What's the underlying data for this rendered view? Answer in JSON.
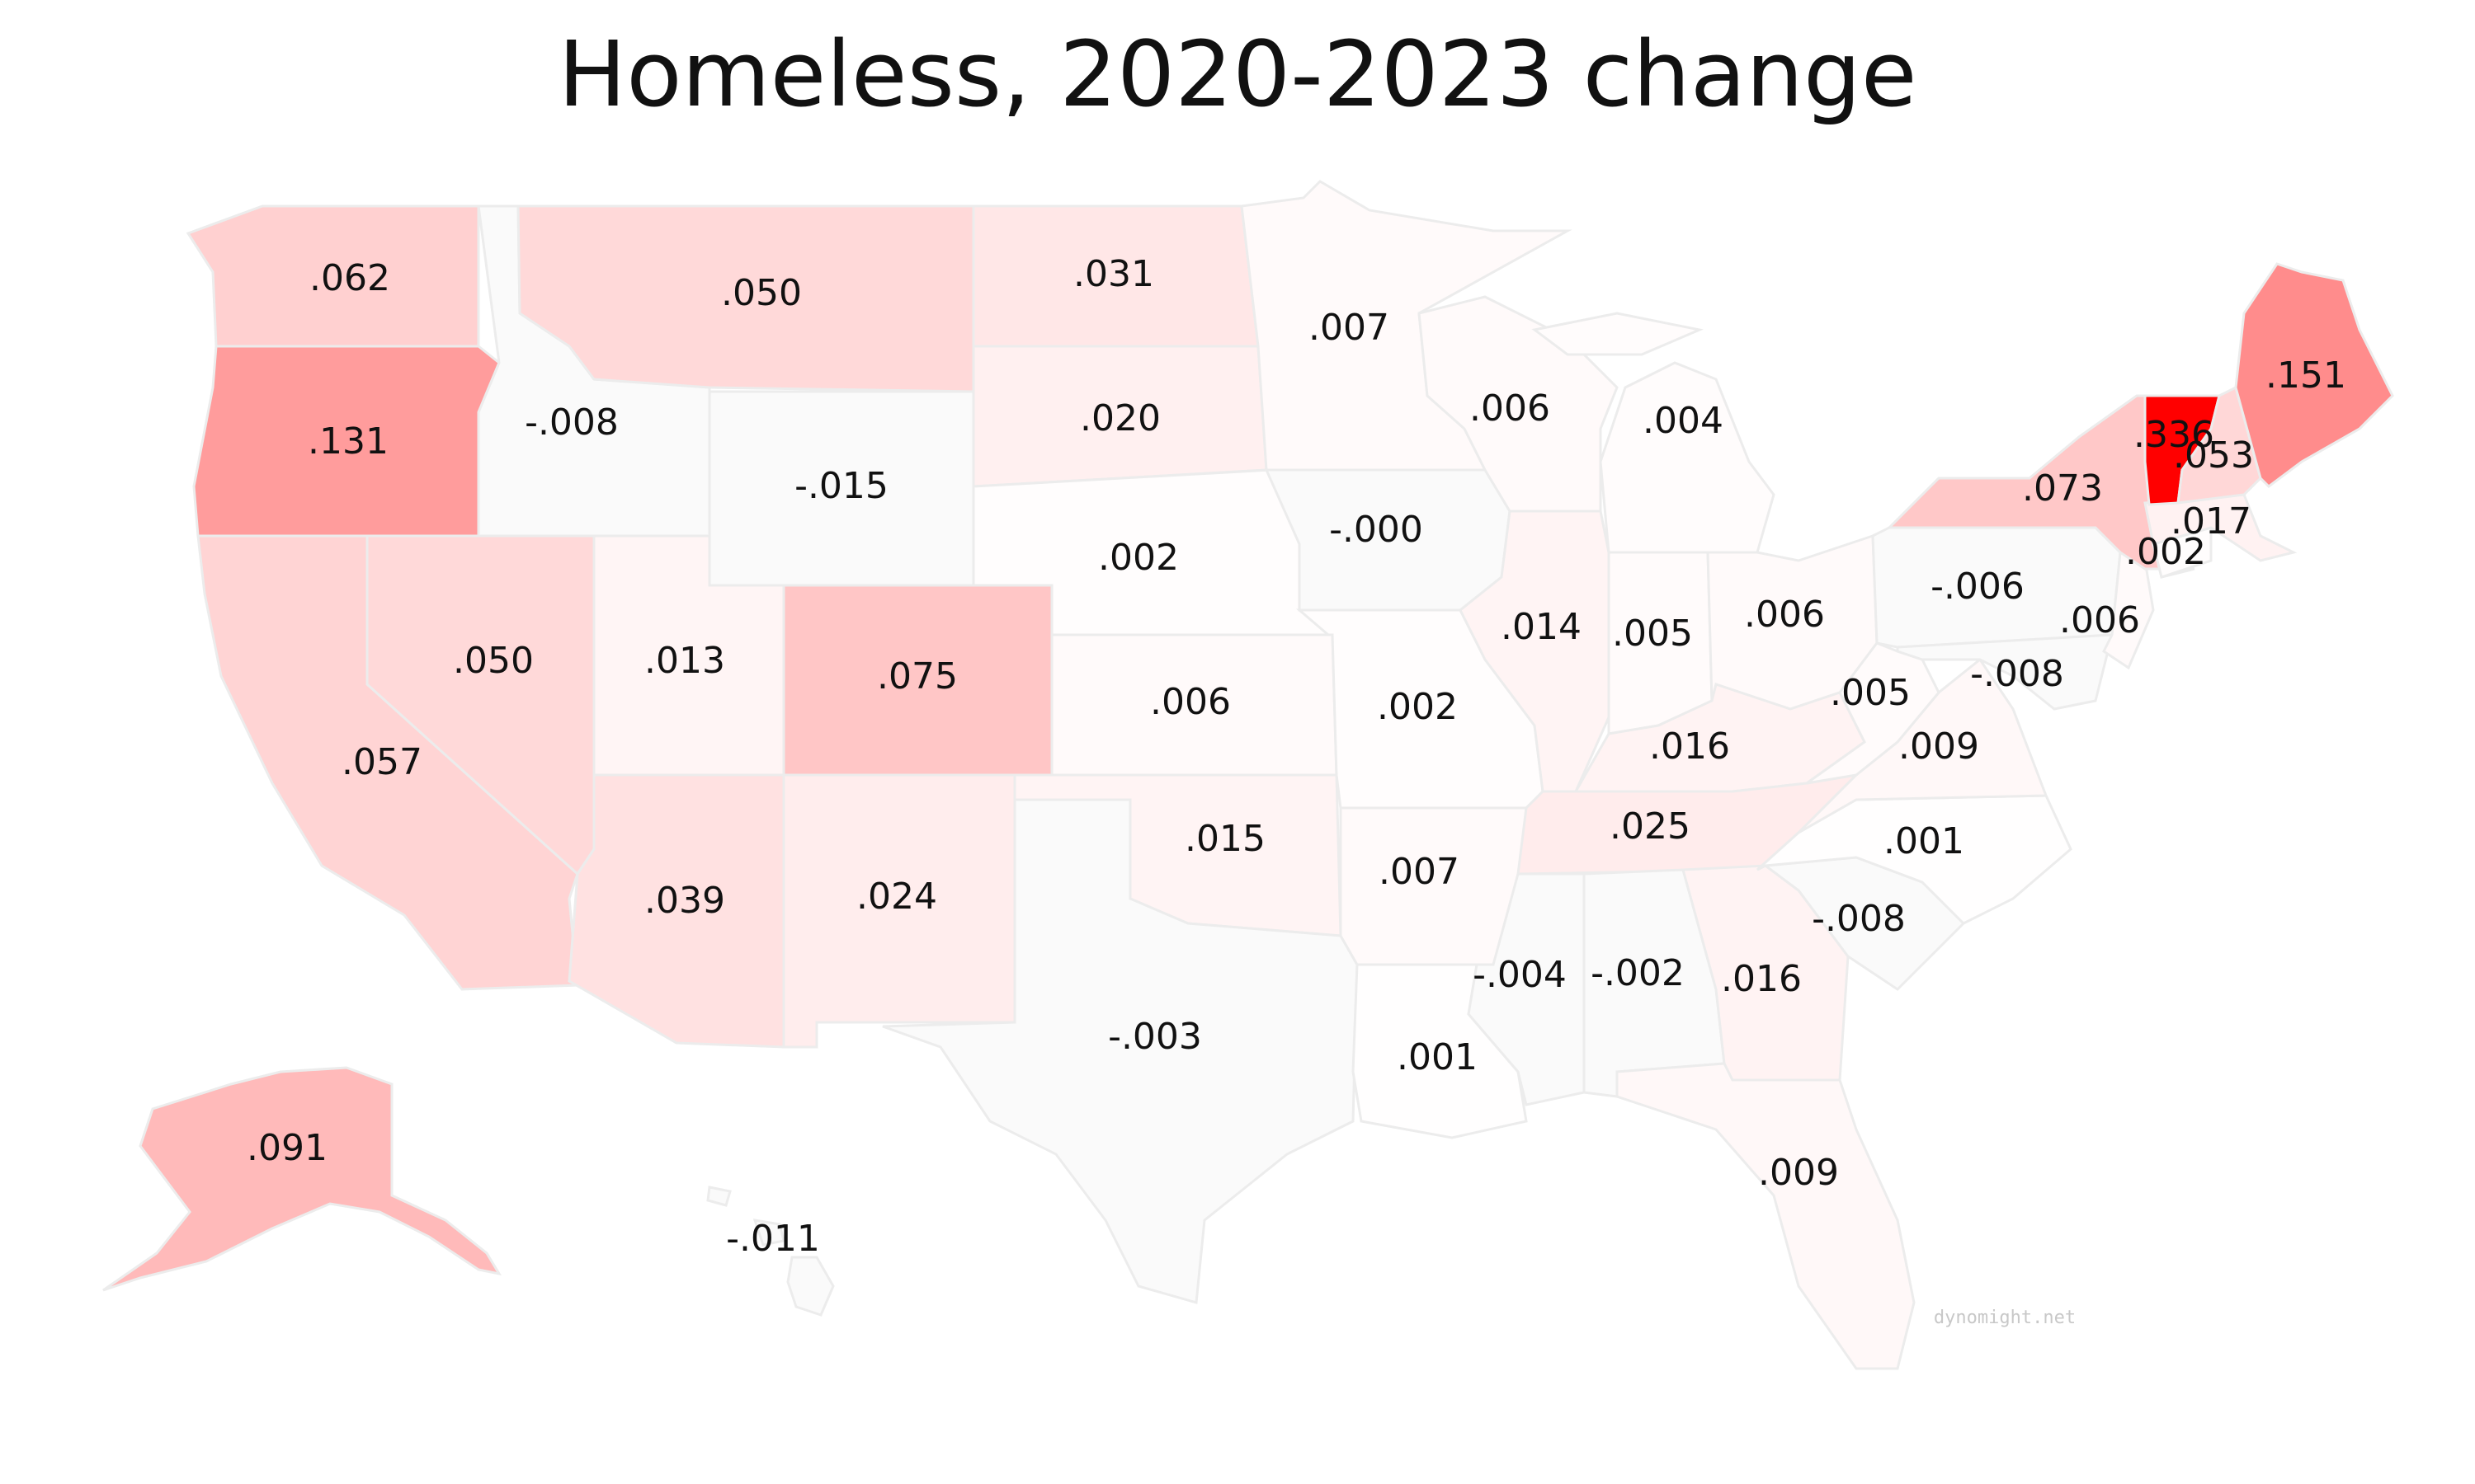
{
  "title": "Homeless, 2020-2023 change",
  "credit": "dynomight.net",
  "color_scale": {
    "low": "#ffffff",
    "high": "#ff0000",
    "max_value": 0.336
  },
  "states": [
    {
      "id": "WA",
      "value": 0.062,
      "label": ".062"
    },
    {
      "id": "OR",
      "value": 0.131,
      "label": ".131"
    },
    {
      "id": "CA",
      "value": 0.057,
      "label": ".057"
    },
    {
      "id": "ID",
      "value": -0.008,
      "label": "-.008"
    },
    {
      "id": "NV",
      "value": 0.05,
      "label": ".050"
    },
    {
      "id": "MT",
      "value": 0.05,
      "label": ".050"
    },
    {
      "id": "WY",
      "value": -0.015,
      "label": "-.015"
    },
    {
      "id": "UT",
      "value": 0.013,
      "label": ".013"
    },
    {
      "id": "AZ",
      "value": 0.039,
      "label": ".039"
    },
    {
      "id": "CO",
      "value": 0.075,
      "label": ".075"
    },
    {
      "id": "NM",
      "value": 0.024,
      "label": ".024"
    },
    {
      "id": "ND",
      "value": 0.031,
      "label": ".031"
    },
    {
      "id": "SD",
      "value": 0.02,
      "label": ".020"
    },
    {
      "id": "NE",
      "value": 0.002,
      "label": ".002"
    },
    {
      "id": "KS",
      "value": 0.006,
      "label": ".006"
    },
    {
      "id": "OK",
      "value": 0.015,
      "label": ".015"
    },
    {
      "id": "TX",
      "value": -0.003,
      "label": "-.003"
    },
    {
      "id": "MN",
      "value": 0.007,
      "label": ".007"
    },
    {
      "id": "IA",
      "value": -0.0,
      "label": "-.000"
    },
    {
      "id": "MO",
      "value": 0.002,
      "label": ".002"
    },
    {
      "id": "AR",
      "value": 0.007,
      "label": ".007"
    },
    {
      "id": "LA",
      "value": 0.001,
      "label": ".001"
    },
    {
      "id": "WI",
      "value": 0.006,
      "label": ".006"
    },
    {
      "id": "IL",
      "value": 0.014,
      "label": ".014"
    },
    {
      "id": "MI",
      "value": 0.004,
      "label": ".004"
    },
    {
      "id": "IN",
      "value": 0.005,
      "label": ".005"
    },
    {
      "id": "OH",
      "value": 0.006,
      "label": ".006"
    },
    {
      "id": "KY",
      "value": 0.016,
      "label": ".016"
    },
    {
      "id": "TN",
      "value": 0.025,
      "label": ".025"
    },
    {
      "id": "MS",
      "value": -0.004,
      "label": "-.004"
    },
    {
      "id": "AL",
      "value": -0.002,
      "label": "-.002"
    },
    {
      "id": "GA",
      "value": 0.016,
      "label": ".016"
    },
    {
      "id": "FL",
      "value": 0.009,
      "label": ".009"
    },
    {
      "id": "SC",
      "value": -0.008,
      "label": "-.008"
    },
    {
      "id": "NC",
      "value": 0.001,
      "label": ".001"
    },
    {
      "id": "VA",
      "value": 0.009,
      "label": ".009"
    },
    {
      "id": "WV",
      "value": 0.005,
      "label": ".005"
    },
    {
      "id": "PA",
      "value": -0.006,
      "label": "-.006"
    },
    {
      "id": "MD",
      "value": -0.008,
      "label": "-.008"
    },
    {
      "id": "NJ",
      "value": 0.006,
      "label": ".006"
    },
    {
      "id": "NY",
      "value": 0.073,
      "label": ".073"
    },
    {
      "id": "CT",
      "value": 0.002,
      "label": ".002"
    },
    {
      "id": "MA",
      "value": 0.017,
      "label": ".017"
    },
    {
      "id": "VT",
      "value": 0.336,
      "label": ".336"
    },
    {
      "id": "NH",
      "value": 0.053,
      "label": ".053"
    },
    {
      "id": "ME",
      "value": 0.151,
      "label": ".151"
    },
    {
      "id": "AK",
      "value": 0.091,
      "label": ".091"
    },
    {
      "id": "HI",
      "value": -0.011,
      "label": "-.011"
    }
  ]
}
